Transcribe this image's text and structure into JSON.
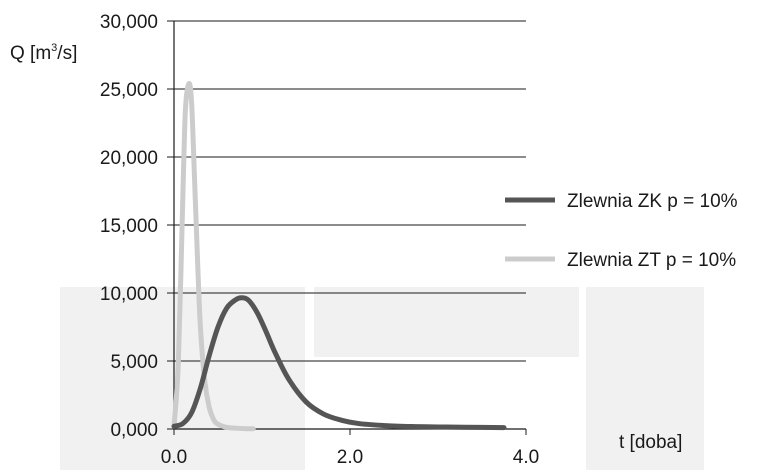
{
  "chart_data": {
    "type": "line",
    "ylabel_prefix": "Q [m",
    "ylabel_sup": "3",
    "ylabel_suffix": "/s]",
    "xlabel": "t [doba]",
    "ylim": [
      0,
      30000
    ],
    "xlim": [
      0,
      4
    ],
    "y_ticks": [
      0,
      5000,
      10000,
      15000,
      20000,
      25000,
      30000
    ],
    "y_tick_labels": [
      "0,000",
      "5,000",
      "10,000",
      "15,000",
      "20,000",
      "25,000",
      "30,000"
    ],
    "x_ticks": [
      0,
      2,
      4
    ],
    "x_tick_labels": [
      "0.0",
      "2.0",
      "4.0"
    ],
    "grid": "horizontal",
    "legend_position": "right",
    "series": [
      {
        "name": "Zlewnia ZK p = 10%",
        "color": "#555555",
        "x": [
          0,
          0.1,
          0.2,
          0.3,
          0.4,
          0.5,
          0.6,
          0.7,
          0.77,
          0.85,
          0.95,
          1.05,
          1.15,
          1.3,
          1.5,
          1.7,
          1.9,
          2.1,
          2.4,
          2.7,
          3.0,
          3.3,
          3.75
        ],
        "y": [
          200,
          400,
          1200,
          3000,
          5400,
          7500,
          8900,
          9500,
          9650,
          9450,
          8500,
          7100,
          5600,
          3700,
          2000,
          1100,
          650,
          400,
          250,
          180,
          150,
          130,
          100
        ]
      },
      {
        "name": "Zlewnia ZT p = 10%",
        "color": "#cccccc",
        "x": [
          0,
          0.05,
          0.1,
          0.13,
          0.17,
          0.2,
          0.23,
          0.27,
          0.3,
          0.35,
          0.4,
          0.45,
          0.5,
          0.6,
          0.7,
          0.8,
          0.9
        ],
        "y": [
          200,
          5000,
          17000,
          23500,
          25400,
          24000,
          19000,
          12000,
          7500,
          3500,
          1600,
          700,
          350,
          120,
          60,
          30,
          20
        ]
      }
    ]
  }
}
